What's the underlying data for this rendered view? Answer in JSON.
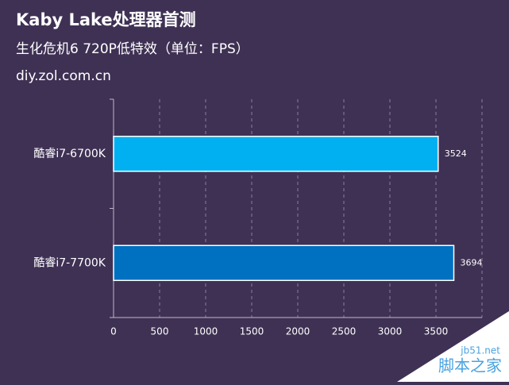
{
  "chart_data": {
    "type": "bar",
    "orientation": "horizontal",
    "title": "Kaby Lake处理器首测",
    "subtitle": "生化危机6 720P低特效（单位：FPS）",
    "source": "diy.zol.com.cn",
    "categories": [
      "酷睿i7-6700K",
      "酷睿i7-7700K"
    ],
    "values": [
      3524,
      3694
    ],
    "colors": [
      "#00b0f0",
      "#0070c0"
    ],
    "xlim": [
      0,
      4000
    ],
    "xticks": [
      0,
      500,
      1000,
      1500,
      2000,
      2500,
      3000,
      3500
    ],
    "grid": true,
    "watermark": [
      "jb51.net",
      "脚本之家"
    ]
  }
}
